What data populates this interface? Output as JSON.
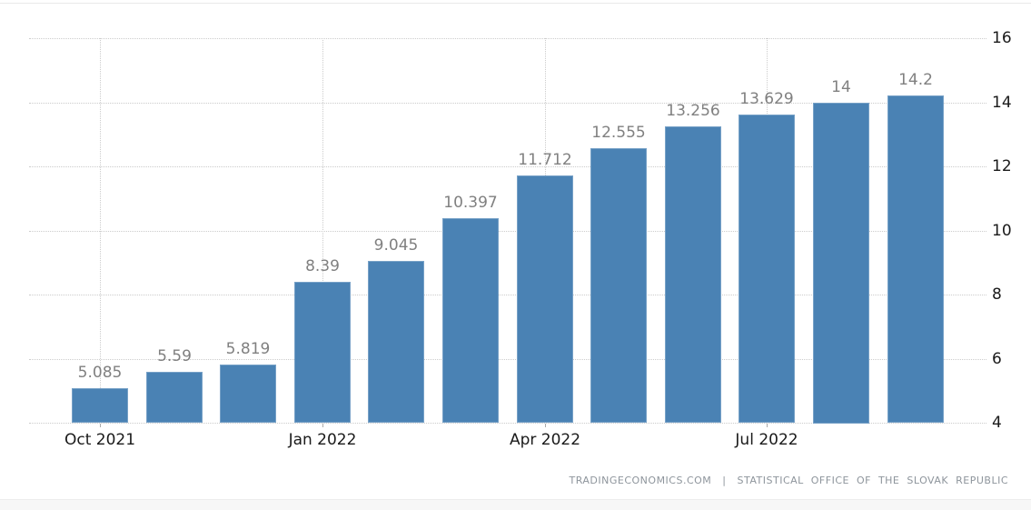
{
  "chart_data": {
    "type": "bar",
    "title": "",
    "xlabel": "",
    "ylabel": "",
    "values": [
      5.085,
      5.59,
      5.819,
      8.39,
      9.045,
      10.397,
      11.712,
      12.555,
      13.256,
      13.629,
      14,
      14.2
    ],
    "bar_value_labels": [
      "5.085",
      "5.59",
      "5.819",
      "8.39",
      "9.045",
      "10.397",
      "11.712",
      "12.555",
      "13.256",
      "13.629",
      "14",
      "14.2"
    ],
    "x_ticks": [
      {
        "index": 0,
        "label": "Oct 2021"
      },
      {
        "index": 3,
        "label": "Jan 2022"
      },
      {
        "index": 6,
        "label": "Apr 2022"
      },
      {
        "index": 9,
        "label": "Jul 2022"
      }
    ],
    "y_ticks": [
      "16",
      "14",
      "12",
      "10",
      "8",
      "6",
      "4"
    ],
    "y_tick_values": [
      16,
      14,
      12,
      10,
      8,
      6,
      4
    ],
    "ylim": [
      4,
      16
    ],
    "y_axis_side": "right",
    "grid": "dotted",
    "legend": "none",
    "colors": {
      "bar": "#4a82b4",
      "gridline": "#cccccc",
      "value_label": "#808080",
      "axis_label": "#1a1a1a"
    }
  },
  "footer": {
    "brand": "TRADINGECONOMICS.COM",
    "separator": "|",
    "source": "STATISTICAL OFFICE OF THE SLOVAK REPUBLIC"
  }
}
